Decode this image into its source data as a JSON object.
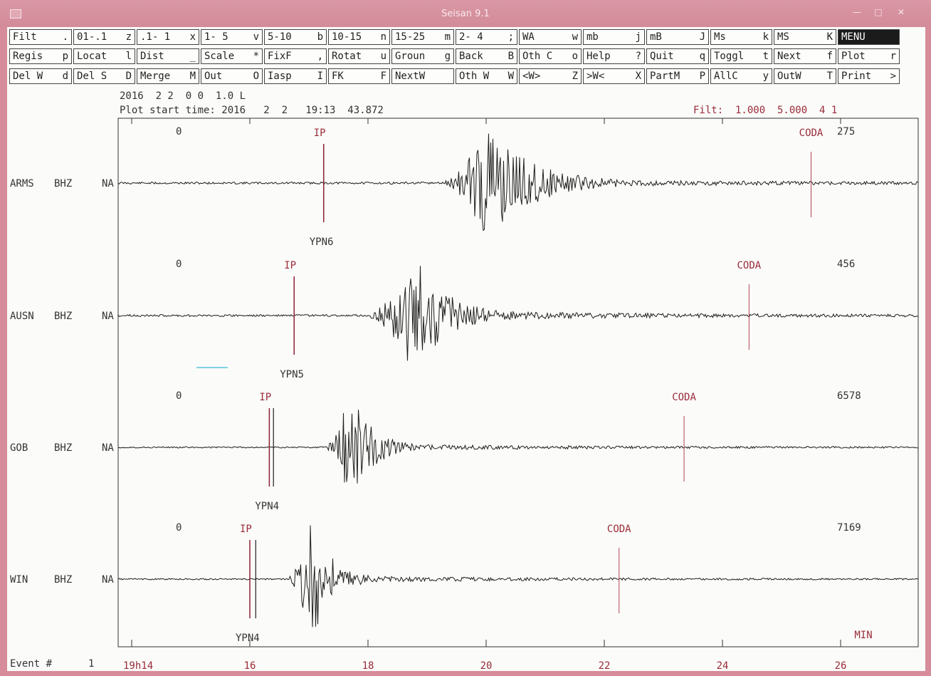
{
  "window": {
    "title": "Seisan 9.1"
  },
  "toolbar": [
    [
      [
        "Filt",
        "."
      ],
      [
        "01-.1",
        "z"
      ],
      [
        ".1- 1",
        "x"
      ],
      [
        "1- 5",
        "v"
      ],
      [
        "5-10",
        "b"
      ],
      [
        "10-15",
        "n"
      ],
      [
        "15-25",
        "m"
      ],
      [
        "2- 4",
        ";"
      ],
      [
        "WA",
        "w"
      ],
      [
        "mb",
        "j"
      ],
      [
        "mB",
        "J"
      ],
      [
        "Ms",
        "k"
      ],
      [
        "MS",
        "K"
      ],
      [
        "MENU",
        ""
      ]
    ],
    [
      [
        "Regis",
        "p"
      ],
      [
        "Locat",
        "l"
      ],
      [
        "Dist",
        "_"
      ],
      [
        "Scale",
        "*"
      ],
      [
        "FixF",
        ","
      ],
      [
        "Rotat",
        "u"
      ],
      [
        "Groun",
        "g"
      ],
      [
        "Back",
        "B"
      ],
      [
        "Oth C",
        "o"
      ],
      [
        "Help",
        "?"
      ],
      [
        "Quit",
        "q"
      ],
      [
        "Toggl",
        "t"
      ],
      [
        "Next",
        "f"
      ],
      [
        "Plot",
        "r"
      ]
    ],
    [
      [
        "Del W",
        "d"
      ],
      [
        "Del S",
        "D"
      ],
      [
        "Merge",
        "M"
      ],
      [
        "Out",
        "O"
      ],
      [
        "Iasp",
        "I"
      ],
      [
        "FK",
        "F"
      ],
      [
        "NextW",
        ""
      ],
      [
        "Oth W",
        "W"
      ],
      [
        "<W>",
        "Z"
      ],
      [
        ">W<",
        "X"
      ],
      [
        "PartM",
        "P"
      ],
      [
        "AllC",
        "y"
      ],
      [
        "OutW",
        "T"
      ],
      [
        "Print",
        ">"
      ]
    ]
  ],
  "header": {
    "date_line": "2016  2 2  0 0  1.0 L",
    "start_time": "Plot start time: 2016   2  2   19:13  43.872",
    "filter": "Filt:  1.000  5.000  4 1"
  },
  "traces": [
    {
      "station": "ARMS",
      "component": "BHZ",
      "units": "NA",
      "zero": "0",
      "max_amp": "275",
      "phase": "IP",
      "phase_min": 17.25,
      "phase2_min": null,
      "coda_min": 25.5,
      "label": "YPN6",
      "onset_min": 19.2,
      "peak_min": 20.0,
      "peak_height": 85,
      "dur": 2.3,
      "noise": 1.5,
      "tail": 3,
      "seed": 11
    },
    {
      "station": "AUSN",
      "component": "BHZ",
      "units": "NA",
      "zero": "0",
      "max_amp": "456",
      "phase": "IP",
      "phase_min": 16.75,
      "phase2_min": null,
      "coda_min": 24.45,
      "label": "YPN5",
      "onset_min": 17.9,
      "peak_min": 18.8,
      "peak_height": 90,
      "dur": 1.6,
      "noise": 1.5,
      "tail": 4,
      "seed": 23
    },
    {
      "station": "GOB",
      "component": "BHZ",
      "units": "NA",
      "zero": "0",
      "max_amp": "6578",
      "phase": "IP",
      "phase_min": 16.33,
      "phase2_min": 16.4,
      "coda_min": 23.35,
      "label": "YPN4",
      "onset_min": 17.2,
      "peak_min": 17.7,
      "peak_height": 85,
      "dur": 1.1,
      "noise": 1.0,
      "tail": 3,
      "seed": 37
    },
    {
      "station": "WIN",
      "component": "BHZ",
      "units": "NA",
      "zero": "0",
      "max_amp": "7169",
      "phase": "IP",
      "phase_min": 16.0,
      "phase2_min": 16.1,
      "coda_min": 22.25,
      "label": "YPN4",
      "onset_min": 16.6,
      "peak_min": 17.05,
      "peak_height": 90,
      "dur": 1.0,
      "noise": 1.0,
      "tail": 3,
      "seed": 53
    }
  ],
  "coda_label": "CODA",
  "time_axis": {
    "ticks": [
      {
        "min": 14,
        "label": "19h14"
      },
      {
        "min": 16,
        "label": "16"
      },
      {
        "min": 18,
        "label": "18"
      },
      {
        "min": 20,
        "label": "20"
      },
      {
        "min": 22,
        "label": "22"
      },
      {
        "min": 24,
        "label": "24"
      },
      {
        "min": 26,
        "label": "26"
      }
    ],
    "unit_label": "MIN"
  },
  "footer": {
    "event_label": "Event #",
    "event_number": "1"
  },
  "colors": {
    "trace": "#1e1e1e",
    "phase": "#8b2233",
    "coda": "#b04455",
    "text_red": "#9a2b39",
    "axis": "#333333"
  }
}
